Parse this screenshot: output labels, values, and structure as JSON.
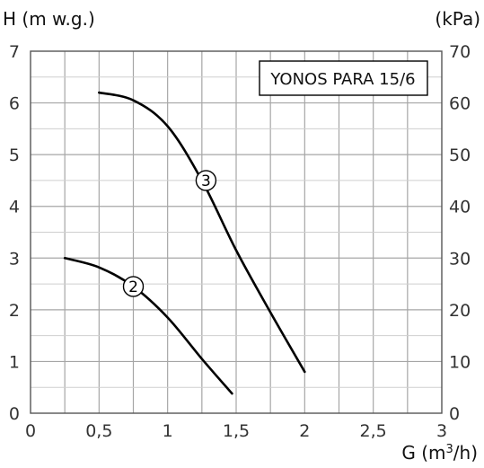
{
  "chart_data": {
    "type": "line",
    "title": "YONOS PARA 15/6",
    "xlabel": "G (m³/h)",
    "ylabel_left": "H (m w.g.)",
    "ylabel_right": "(kPa)",
    "xlim": [
      0,
      3
    ],
    "ylim": [
      0,
      7
    ],
    "ylim_right": [
      0,
      70
    ],
    "x_ticks": [
      "0",
      "0,5",
      "1",
      "1,5",
      "2",
      "2,5",
      "3"
    ],
    "y_ticks_left": [
      "0",
      "1",
      "2",
      "3",
      "4",
      "5",
      "6",
      "7"
    ],
    "y_ticks_right": [
      "0",
      "10",
      "20",
      "30",
      "40",
      "50",
      "60",
      "70"
    ],
    "grid": true,
    "series": [
      {
        "name": "2",
        "x": [
          0.25,
          0.5,
          0.75,
          1.0,
          1.25,
          1.47
        ],
        "y": [
          3.0,
          2.82,
          2.45,
          1.85,
          1.05,
          0.38
        ],
        "label_at": [
          0.75,
          2.45
        ]
      },
      {
        "name": "3",
        "x": [
          0.5,
          0.75,
          1.0,
          1.25,
          1.5,
          1.75,
          2.0
        ],
        "y": [
          6.2,
          6.05,
          5.55,
          4.5,
          3.15,
          1.95,
          0.8
        ],
        "label_at": [
          1.28,
          4.5
        ]
      }
    ]
  }
}
